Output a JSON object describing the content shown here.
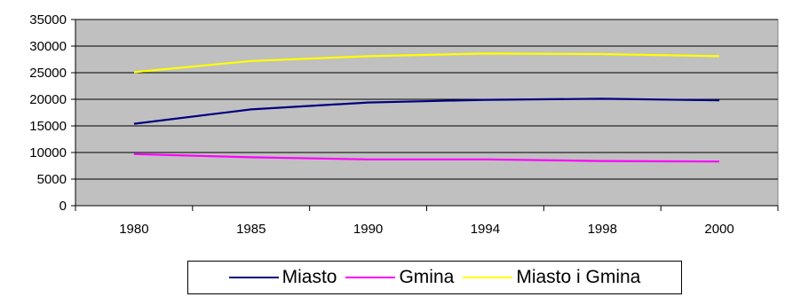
{
  "chart_data": {
    "type": "line",
    "categories": [
      "1980",
      "1985",
      "1990",
      "1994",
      "1998",
      "2000"
    ],
    "series": [
      {
        "name": "Miasto",
        "color": "#000080",
        "values": [
          15400,
          18100,
          19400,
          19900,
          20100,
          19800
        ]
      },
      {
        "name": "Gmina",
        "color": "#ff00ff",
        "values": [
          9700,
          9100,
          8700,
          8700,
          8400,
          8300
        ]
      },
      {
        "name": "Miasto i Gmina",
        "color": "#ffff00",
        "values": [
          25100,
          27200,
          28100,
          28600,
          28500,
          28100
        ]
      }
    ],
    "ylim": [
      0,
      35000
    ],
    "yticks": [
      "0",
      "5000",
      "10000",
      "15000",
      "20000",
      "25000",
      "30000",
      "35000"
    ],
    "plot_background": "#c0c0c0",
    "grid": true,
    "legend": "bottom"
  }
}
